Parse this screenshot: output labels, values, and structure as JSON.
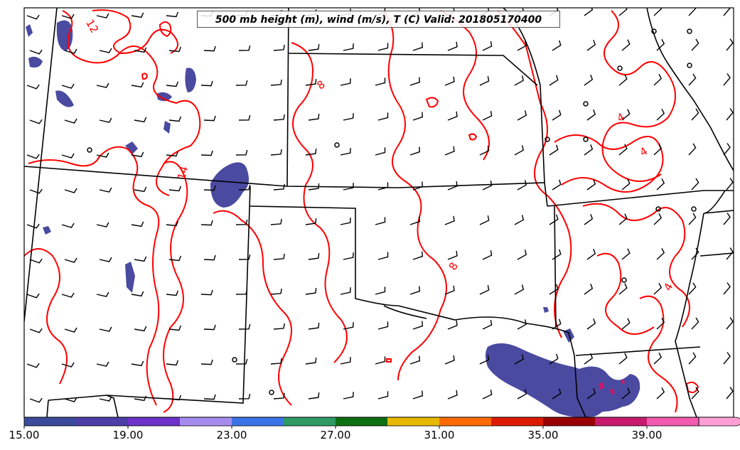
{
  "title": "500 mb height (m), wind (m/s), T (C) Valid: 201805170400",
  "contour_labels": [
    "12",
    "8",
    "4",
    "4",
    "14",
    "8",
    "4"
  ],
  "colorbar": {
    "ticks": [
      "15.00",
      "19.00",
      "23.00",
      "27.00",
      "31.00",
      "35.00",
      "39.00"
    ],
    "colors": [
      "#3b4a9a",
      "#4b3ea6",
      "#6a32c8",
      "#a78cf0",
      "#3b74e6",
      "#2f9a64",
      "#0e6e12",
      "#e6b800",
      "#ff6a00",
      "#dc1a00",
      "#990000",
      "#c71a6e",
      "#f25bb0",
      "#ff9fd6"
    ]
  },
  "colors": {
    "temperature_contour": "#ff0000",
    "precip_fill": "#4a4aa0",
    "borders": "#000000"
  }
}
